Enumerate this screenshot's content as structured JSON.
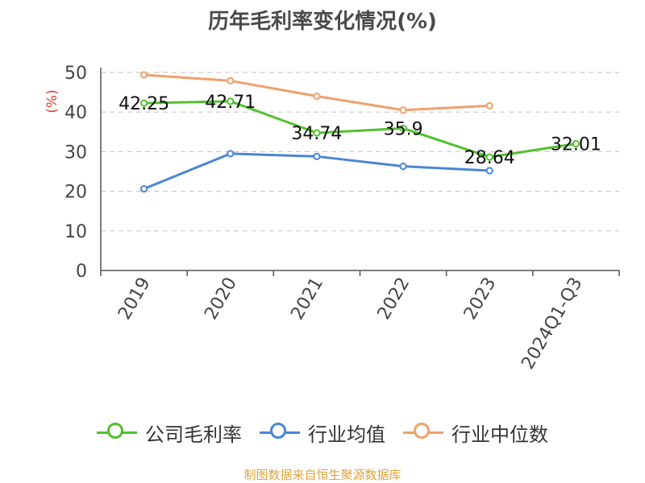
{
  "chart_data": {
    "type": "line",
    "title": "历年毛利率变化情况(%)",
    "ylabel": "(%)",
    "xlabel": "",
    "categories": [
      "2019",
      "2020",
      "2021",
      "2022",
      "2023",
      "2024Q1-Q3"
    ],
    "ylim": [
      0,
      50
    ],
    "yticks": [
      "0",
      "10",
      "20",
      "30",
      "40",
      "50"
    ],
    "grid": true,
    "legend_position": "bottom",
    "series": [
      {
        "name": "公司毛利率",
        "color": "#52c12e",
        "values": [
          42.25,
          42.71,
          34.74,
          35.9,
          28.64,
          32.01
        ],
        "labels": [
          "42.25",
          "42.71",
          "34.74",
          "35.9",
          "28.64",
          "32.01"
        ]
      },
      {
        "name": "行业均值",
        "color": "#4a86d4",
        "values": [
          20.6,
          29.5,
          28.8,
          26.3,
          25.2,
          null
        ]
      },
      {
        "name": "行业中位数",
        "color": "#f0a06c",
        "values": [
          49.4,
          47.9,
          44.0,
          40.5,
          41.6,
          null
        ]
      }
    ]
  },
  "source": "制图数据来自恒生聚源数据库"
}
